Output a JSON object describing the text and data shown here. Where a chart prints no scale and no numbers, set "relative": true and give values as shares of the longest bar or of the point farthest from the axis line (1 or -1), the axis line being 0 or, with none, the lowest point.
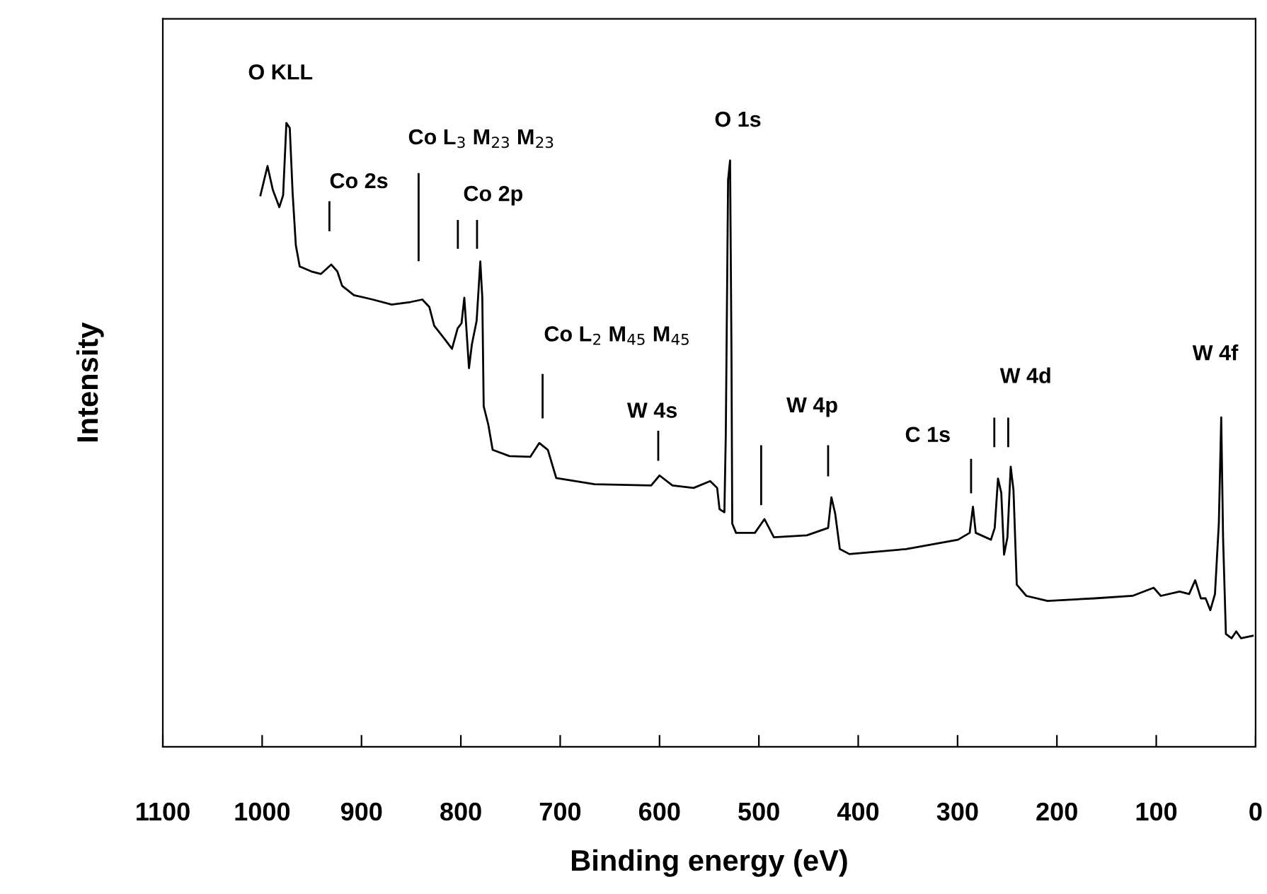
{
  "chart_data": {
    "type": "line",
    "relative": true,
    "xlabel": "Binding energy (eV)",
    "ylabel": "Intensity",
    "xlim": [
      1100,
      0
    ],
    "xticks": [
      1100,
      1000,
      900,
      800,
      700,
      600,
      500,
      400,
      300,
      200,
      100,
      0
    ],
    "tick_labels": "x",
    "grid": false,
    "legend": false,
    "series": [
      {
        "color": "#000000",
        "x": [
          1001.7,
          994.6,
          989.3,
          982.7,
          978.9,
          975.6,
          972.2,
          969.3,
          966.1,
          962.2,
          950.4,
          940.8,
          930.4,
          924.3,
          919.5,
          907.6,
          888.7,
          869.6,
          850.6,
          838.8,
          831.7,
          826.8,
          817.4,
          808.9,
          803.2,
          799.3,
          796.5,
          794.6,
          791.8,
          788.9,
          784.1,
          780.4,
          778.4,
          777,
          772.3,
          768,
          751,
          730,
          721,
          712.4,
          704,
          665.4,
          608.4,
          600,
          587,
          565.7,
          549,
          542,
          539.6,
          534.7,
          533.3,
          531,
          529,
          527.6,
          526.8,
          523,
          504,
          494.4,
          484.9,
          451.7,
          430.3,
          427,
          423.2,
          418.5,
          408.9,
          351.9,
          299.6,
          287.8,
          284.5,
          281.7,
          266.4,
          262.6,
          259.3,
          256,
          253.2,
          249.8,
          246.5,
          243.7,
          240.4,
          230.8,
          209.4,
          162,
          123.9,
          102.6,
          95.4,
          76.5,
          66.9,
          60.8,
          55.1,
          50.3,
          45.6,
          40.9,
          37,
          34.6,
          32.7,
          29.9,
          24.2,
          19.5,
          14.6,
          2.9
        ],
        "values": [
          0.884,
          0.931,
          0.893,
          0.865,
          0.884,
          1.0,
          0.992,
          0.887,
          0.804,
          0.77,
          0.762,
          0.758,
          0.773,
          0.762,
          0.739,
          0.724,
          0.717,
          0.709,
          0.713,
          0.717,
          0.705,
          0.675,
          0.656,
          0.638,
          0.671,
          0.679,
          0.72,
          0.675,
          0.607,
          0.645,
          0.683,
          0.778,
          0.72,
          0.546,
          0.516,
          0.476,
          0.466,
          0.465,
          0.487,
          0.476,
          0.431,
          0.421,
          0.419,
          0.435,
          0.419,
          0.415,
          0.426,
          0.415,
          0.381,
          0.376,
          0.501,
          0.909,
          0.94,
          0.638,
          0.358,
          0.343,
          0.343,
          0.365,
          0.336,
          0.339,
          0.351,
          0.4,
          0.374,
          0.317,
          0.309,
          0.317,
          0.332,
          0.343,
          0.385,
          0.343,
          0.332,
          0.351,
          0.43,
          0.407,
          0.308,
          0.336,
          0.449,
          0.411,
          0.26,
          0.242,
          0.234,
          0.238,
          0.242,
          0.255,
          0.242,
          0.249,
          0.245,
          0.267,
          0.238,
          0.238,
          0.219,
          0.245,
          0.358,
          0.528,
          0.333,
          0.181,
          0.174,
          0.185,
          0.174,
          0.178
        ]
      },
      {
        "color": "#000000",
        "x": [
          932.3,
          932.3,
          null,
          842.5,
          842.5,
          null,
          803,
          803,
          null,
          783.7,
          783.7,
          null,
          717.7,
          717.7,
          null,
          601.3,
          601.3,
          null,
          497.7,
          497.7,
          null,
          430.3,
          430.3,
          null,
          286.4,
          286.4,
          null,
          263,
          263,
          null,
          249,
          249
        ],
        "values": [
          0.873,
          0.828,
          null,
          0.918,
          0.78,
          null,
          0.843,
          0.8,
          null,
          0.843,
          0.8,
          null,
          0.596,
          0.528,
          null,
          0.505,
          0.46,
          null,
          0.482,
          0.389,
          null,
          0.482,
          0.435,
          null,
          0.46,
          0.408,
          null,
          0.526,
          0.482,
          null,
          0.526,
          0.482
        ]
      }
    ],
    "annotations": [
      {
        "text": "O KLL",
        "x": 975.6,
        "y": 1.0
      },
      {
        "text": "Co 2s",
        "x": 932.3,
        "y": 0.873
      },
      {
        "text": "Co L$_{3}$ M$_{23}$ M$_{23}$",
        "x": 842.5,
        "y": 0.918
      },
      {
        "text": "Co 2p",
        "x": 803,
        "y": 0.843
      },
      {
        "text": "Co L$_{2}$ M$_{45}$ M$_{45}$",
        "x": 717.7,
        "y": 0.596
      },
      {
        "text": "W 4s",
        "x": 601.3,
        "y": 0.505
      },
      {
        "text": "O 1s",
        "x": 529,
        "y": 0.94
      },
      {
        "text": "W 4p",
        "x": 497.7,
        "y": 0.482
      },
      {
        "text": "C 1s",
        "x": 286.4,
        "y": 0.46
      },
      {
        "text": "W 4d",
        "x": 263,
        "y": 0.526
      },
      {
        "text": "W 4f",
        "x": 34.6,
        "y": 0.528
      }
    ]
  }
}
